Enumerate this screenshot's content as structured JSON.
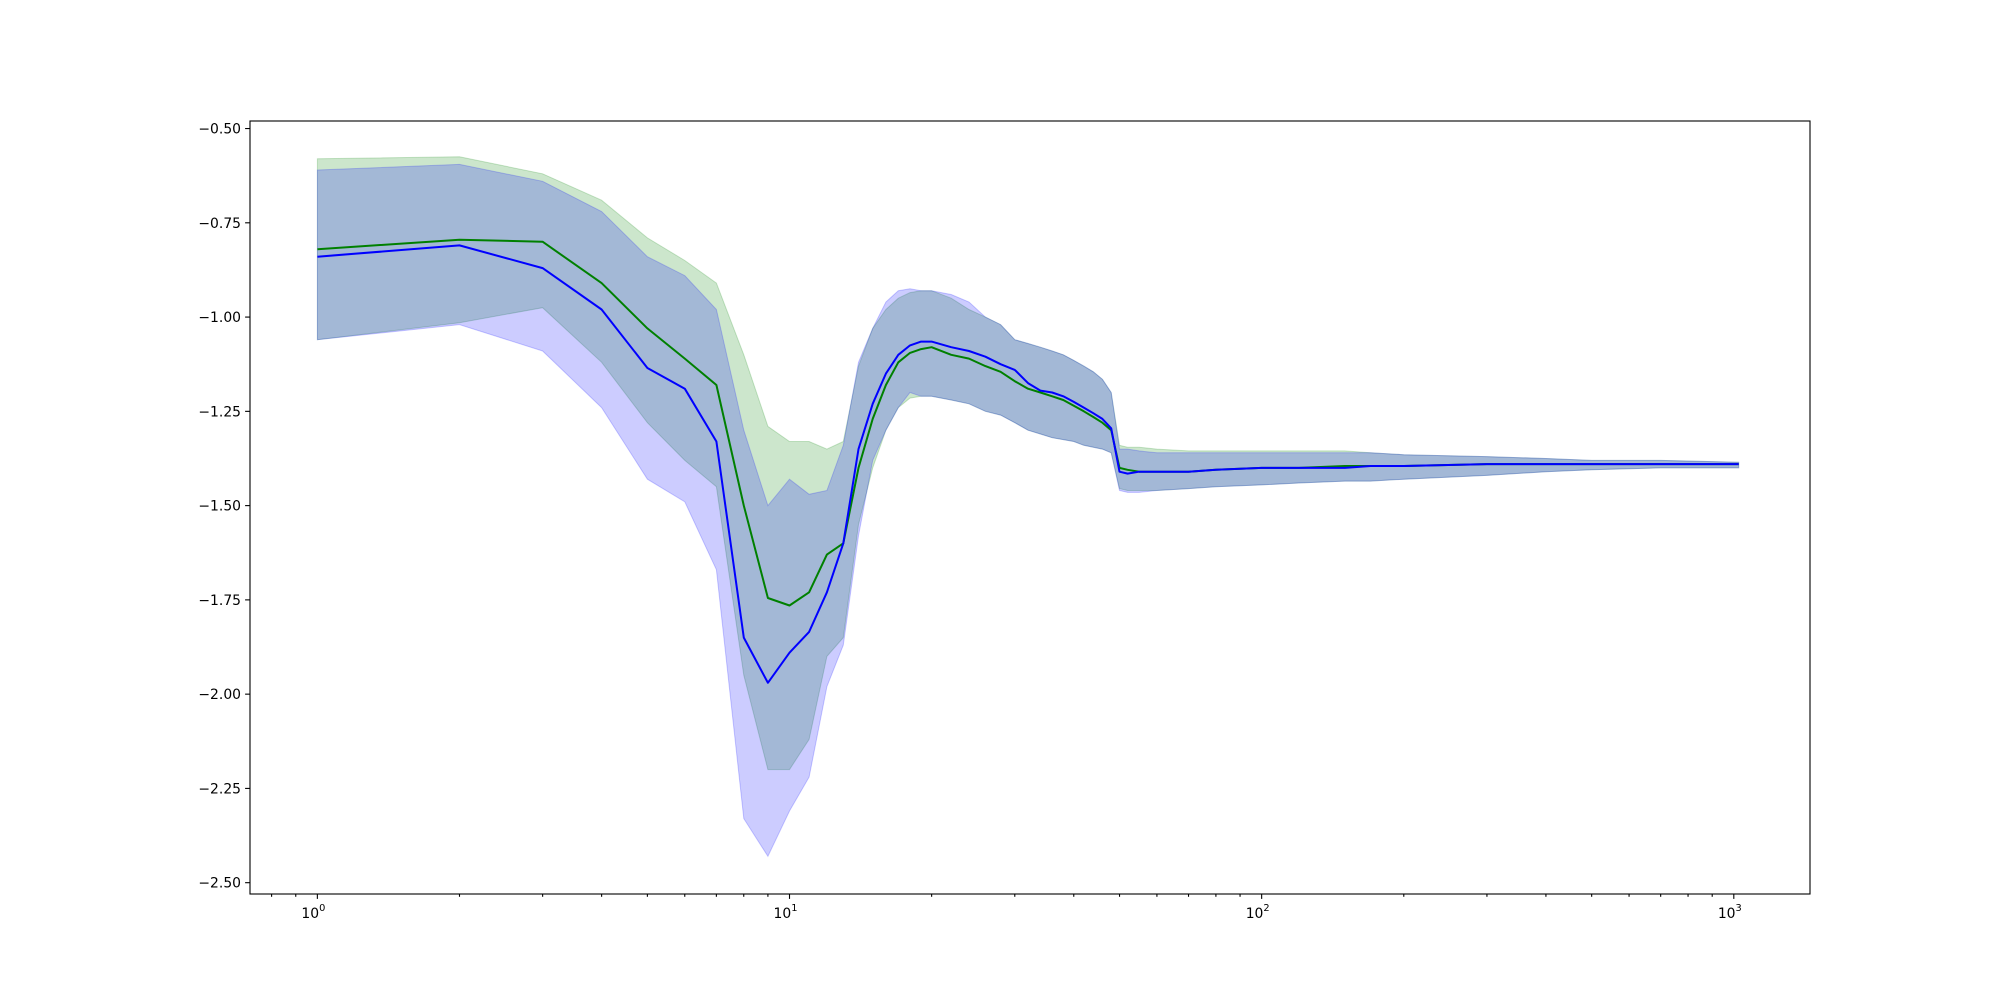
{
  "chart_data": {
    "type": "line",
    "title": "",
    "xlabel": "",
    "ylabel": "",
    "x_scale": "log",
    "xlim": [
      0.72,
      1450
    ],
    "ylim": [
      -2.53,
      -0.48
    ],
    "grid": false,
    "legend": null,
    "x_ticks": [
      {
        "value": 1,
        "base": "10",
        "exp": "0"
      },
      {
        "value": 10,
        "base": "10",
        "exp": "1"
      },
      {
        "value": 100,
        "base": "10",
        "exp": "2"
      },
      {
        "value": 1000,
        "base": "10",
        "exp": "3"
      }
    ],
    "y_ticks": [
      {
        "value": -0.5,
        "label": "−0.50"
      },
      {
        "value": -0.75,
        "label": "−0.75"
      },
      {
        "value": -1.0,
        "label": "−1.00"
      },
      {
        "value": -1.25,
        "label": "−1.25"
      },
      {
        "value": -1.5,
        "label": "−1.50"
      },
      {
        "value": -1.75,
        "label": "−1.75"
      },
      {
        "value": -2.0,
        "label": "−2.00"
      },
      {
        "value": -2.25,
        "label": "−2.25"
      },
      {
        "value": -2.5,
        "label": "−2.50"
      }
    ],
    "series": [
      {
        "color": "#008000",
        "band_color": "#008000",
        "band_opacity": 0.2,
        "x": [
          1,
          2,
          3,
          4,
          5,
          6,
          7,
          8,
          9,
          10,
          11,
          12,
          13,
          14,
          15,
          16,
          17,
          18,
          19,
          20,
          22,
          24,
          26,
          28,
          30,
          32,
          34,
          36,
          38,
          40,
          42,
          44,
          46,
          48,
          50,
          52,
          55,
          60,
          70,
          80,
          100,
          120,
          150,
          170,
          200,
          300,
          400,
          500,
          700,
          1024
        ],
        "y": [
          -0.82,
          -0.795,
          -0.8,
          -0.91,
          -1.03,
          -1.11,
          -1.18,
          -1.5,
          -1.745,
          -1.765,
          -1.73,
          -1.63,
          -1.6,
          -1.4,
          -1.27,
          -1.18,
          -1.12,
          -1.095,
          -1.085,
          -1.08,
          -1.1,
          -1.11,
          -1.13,
          -1.145,
          -1.17,
          -1.19,
          -1.2,
          -1.21,
          -1.22,
          -1.235,
          -1.25,
          -1.265,
          -1.28,
          -1.3,
          -1.4,
          -1.405,
          -1.41,
          -1.41,
          -1.41,
          -1.405,
          -1.4,
          -1.4,
          -1.395,
          -1.395,
          -1.395,
          -1.39,
          -1.39,
          -1.39,
          -1.39,
          -1.39
        ],
        "lower": [
          -1.06,
          -1.015,
          -0.975,
          -1.12,
          -1.28,
          -1.38,
          -1.45,
          -1.95,
          -2.2,
          -2.2,
          -2.12,
          -1.9,
          -1.85,
          -1.55,
          -1.4,
          -1.3,
          -1.24,
          -1.215,
          -1.21,
          -1.21,
          -1.22,
          -1.23,
          -1.25,
          -1.26,
          -1.28,
          -1.3,
          -1.31,
          -1.32,
          -1.325,
          -1.33,
          -1.34,
          -1.345,
          -1.35,
          -1.36,
          -1.455,
          -1.46,
          -1.46,
          -1.46,
          -1.455,
          -1.45,
          -1.445,
          -1.44,
          -1.435,
          -1.435,
          -1.43,
          -1.42,
          -1.41,
          -1.405,
          -1.4,
          -1.4
        ],
        "upper": [
          -0.58,
          -0.575,
          -0.62,
          -0.69,
          -0.79,
          -0.85,
          -0.91,
          -1.1,
          -1.29,
          -1.33,
          -1.33,
          -1.35,
          -1.33,
          -1.13,
          -1.03,
          -0.98,
          -0.95,
          -0.935,
          -0.93,
          -0.93,
          -0.95,
          -0.98,
          -1.0,
          -1.02,
          -1.06,
          -1.07,
          -1.08,
          -1.09,
          -1.1,
          -1.115,
          -1.13,
          -1.145,
          -1.165,
          -1.2,
          -1.34,
          -1.345,
          -1.345,
          -1.35,
          -1.355,
          -1.355,
          -1.355,
          -1.355,
          -1.355,
          -1.36,
          -1.365,
          -1.37,
          -1.375,
          -1.38,
          -1.38,
          -1.385
        ]
      },
      {
        "color": "#0000ff",
        "band_color": "#0000ff",
        "band_opacity": 0.2,
        "x": [
          1,
          2,
          3,
          4,
          5,
          6,
          7,
          8,
          9,
          10,
          11,
          12,
          13,
          14,
          15,
          16,
          17,
          18,
          19,
          20,
          22,
          24,
          26,
          28,
          30,
          32,
          34,
          36,
          38,
          40,
          42,
          44,
          46,
          48,
          50,
          52,
          55,
          60,
          70,
          80,
          100,
          120,
          150,
          170,
          200,
          300,
          400,
          500,
          700,
          1024
        ],
        "y": [
          -0.84,
          -0.81,
          -0.87,
          -0.98,
          -1.135,
          -1.19,
          -1.33,
          -1.85,
          -1.97,
          -1.89,
          -1.835,
          -1.73,
          -1.6,
          -1.35,
          -1.23,
          -1.15,
          -1.1,
          -1.075,
          -1.065,
          -1.065,
          -1.08,
          -1.09,
          -1.105,
          -1.125,
          -1.14,
          -1.175,
          -1.195,
          -1.2,
          -1.21,
          -1.225,
          -1.24,
          -1.255,
          -1.27,
          -1.295,
          -1.41,
          -1.415,
          -1.41,
          -1.41,
          -1.41,
          -1.405,
          -1.4,
          -1.4,
          -1.4,
          -1.395,
          -1.395,
          -1.39,
          -1.39,
          -1.39,
          -1.39,
          -1.39
        ],
        "lower": [
          -1.06,
          -1.02,
          -1.09,
          -1.24,
          -1.43,
          -1.49,
          -1.67,
          -2.33,
          -2.43,
          -2.31,
          -2.22,
          -1.98,
          -1.87,
          -1.58,
          -1.38,
          -1.3,
          -1.24,
          -1.2,
          -1.21,
          -1.21,
          -1.22,
          -1.23,
          -1.25,
          -1.26,
          -1.28,
          -1.3,
          -1.31,
          -1.32,
          -1.325,
          -1.33,
          -1.34,
          -1.345,
          -1.35,
          -1.36,
          -1.46,
          -1.465,
          -1.465,
          -1.46,
          -1.455,
          -1.45,
          -1.445,
          -1.44,
          -1.435,
          -1.435,
          -1.43,
          -1.42,
          -1.41,
          -1.405,
          -1.4,
          -1.4
        ],
        "upper": [
          -0.61,
          -0.595,
          -0.64,
          -0.72,
          -0.84,
          -0.89,
          -0.98,
          -1.3,
          -1.5,
          -1.43,
          -1.47,
          -1.46,
          -1.34,
          -1.12,
          -1.03,
          -0.96,
          -0.93,
          -0.925,
          -0.93,
          -0.93,
          -0.94,
          -0.96,
          -1.0,
          -1.02,
          -1.06,
          -1.07,
          -1.08,
          -1.09,
          -1.1,
          -1.115,
          -1.13,
          -1.145,
          -1.165,
          -1.2,
          -1.35,
          -1.35,
          -1.355,
          -1.36,
          -1.36,
          -1.36,
          -1.36,
          -1.36,
          -1.36,
          -1.36,
          -1.365,
          -1.37,
          -1.375,
          -1.38,
          -1.38,
          -1.385
        ]
      }
    ]
  }
}
